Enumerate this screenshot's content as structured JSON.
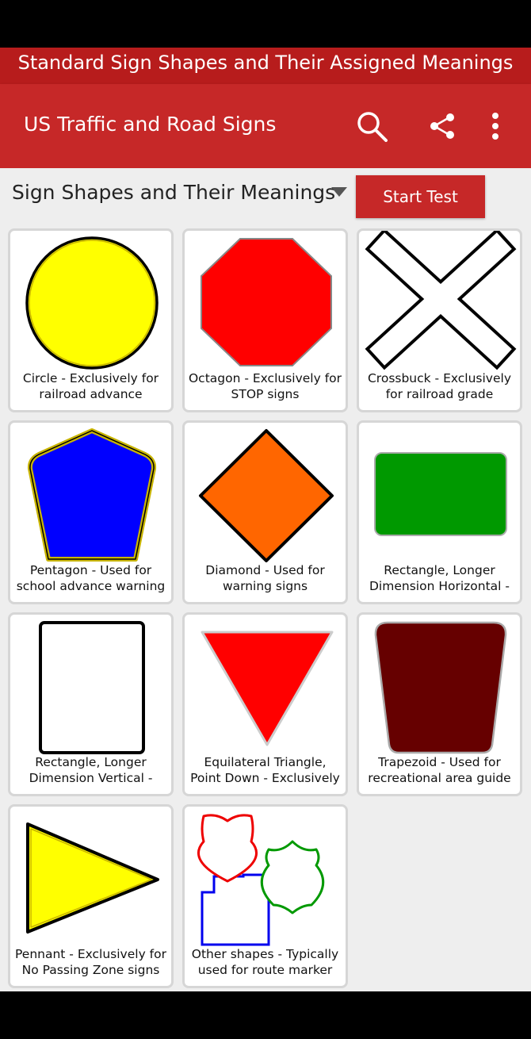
{
  "banner": {
    "text": "Standard Sign Shapes and Their Assigned Meanings"
  },
  "appbar": {
    "title": "US Traffic and Road Signs",
    "icons": [
      "search-icon",
      "share-icon",
      "more-vert-icon"
    ]
  },
  "section": {
    "title": "Sign Shapes and Their Meanings",
    "start_button": "Start Test"
  },
  "colors": {
    "app_red": "#c62828",
    "banner_red": "#b71c1c",
    "background": "#eeeeee"
  },
  "cards": [
    {
      "caption": "Circle - Exclusively for railroad advance warning",
      "icon": "circle-sign-icon",
      "color": "#ffff00"
    },
    {
      "caption": "Octagon - Exclusively for STOP signs",
      "icon": "octagon-sign-icon",
      "color": "#ff0000"
    },
    {
      "caption": "Crossbuck - Exclusively for railroad grade",
      "icon": "crossbuck-sign-icon",
      "color": "#ffffff"
    },
    {
      "caption": "Pentagon - Used for school advance warning",
      "icon": "pentagon-sign-icon",
      "color": "#0000ff"
    },
    {
      "caption": "Diamond - Used for warning signs",
      "icon": "diamond-sign-icon",
      "color": "#ff6600"
    },
    {
      "caption": "Rectangle, Longer Dimension Horizontal -",
      "icon": "horizontal-rectangle-sign-icon",
      "color": "#009900"
    },
    {
      "caption": "Rectangle, Longer Dimension Vertical - Used",
      "icon": "vertical-rectangle-sign-icon",
      "color": "#ffffff"
    },
    {
      "caption": "Equilateral Triangle, Point Down - Exclusively for",
      "icon": "triangle-sign-icon",
      "color": "#ff0000"
    },
    {
      "caption": "Trapezoid - Used for recreational area guide",
      "icon": "trapezoid-sign-icon",
      "color": "#660000"
    },
    {
      "caption": "Pennant - Exclusively for No Passing Zone signs",
      "icon": "pennant-sign-icon",
      "color": "#ffff00"
    },
    {
      "caption": "Other shapes - Typically used for route marker",
      "icon": "route-marker-shapes-icon",
      "color": "#ffffff"
    }
  ]
}
